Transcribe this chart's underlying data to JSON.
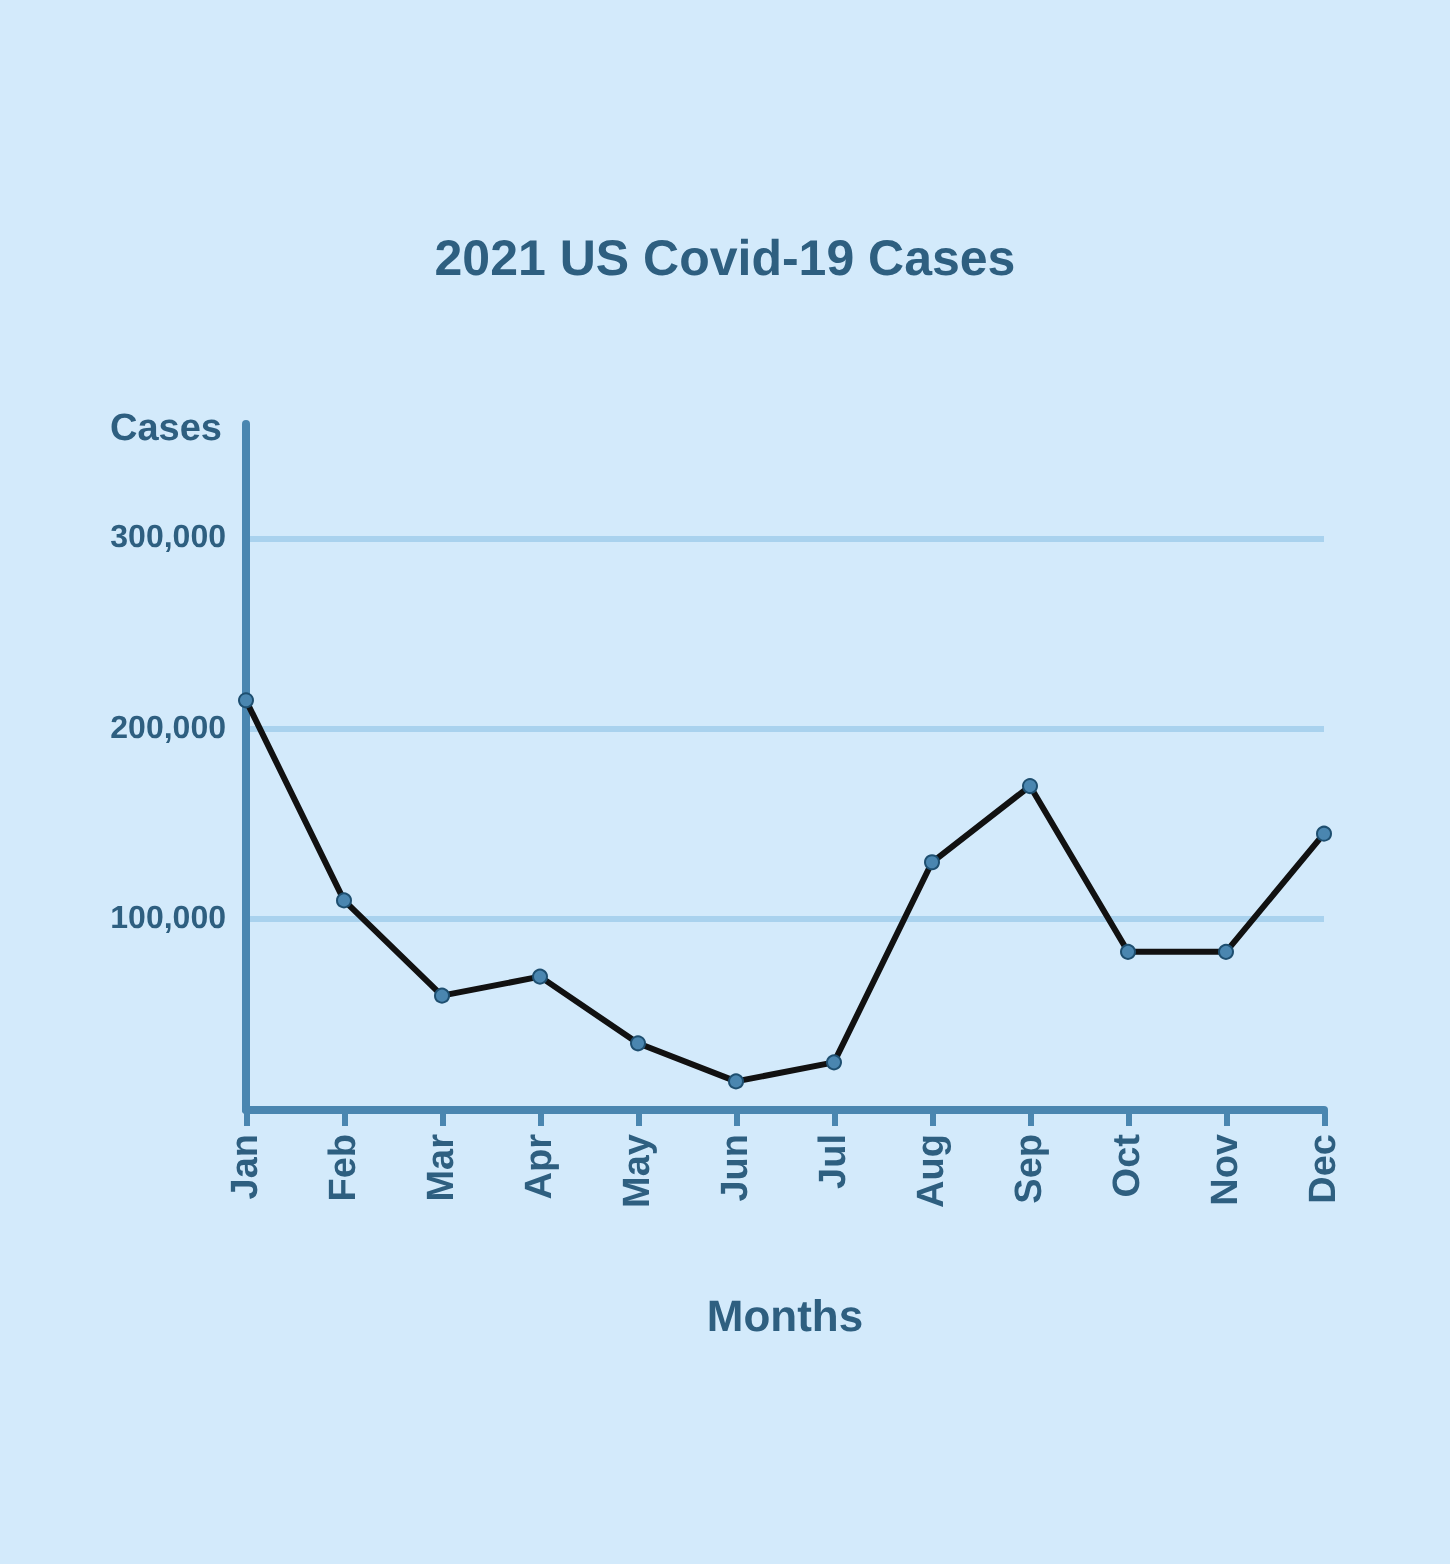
{
  "chart_data": {
    "type": "line",
    "title": "2021 US Covid-19 Cases",
    "xlabel": "Months",
    "ylabel": "Cases",
    "categories": [
      "Jan",
      "Feb",
      "Mar",
      "Apr",
      "May",
      "Jun",
      "Jul",
      "Aug",
      "Sep",
      "Oct",
      "Nov",
      "Dec"
    ],
    "series": [
      {
        "color": "#111111",
        "values": [
          215000,
          110000,
          60000,
          70000,
          35000,
          15000,
          25000,
          130000,
          170000,
          83000,
          83000,
          145000
        ]
      }
    ],
    "ylim": [
      0,
      360000
    ],
    "yticks": [
      {
        "value": 100000,
        "label": "100,000"
      },
      {
        "value": 200000,
        "label": "200,000"
      },
      {
        "value": 300000,
        "label": "300,000"
      }
    ],
    "grid": "y",
    "marker": "circle",
    "line_style": "solid"
  }
}
